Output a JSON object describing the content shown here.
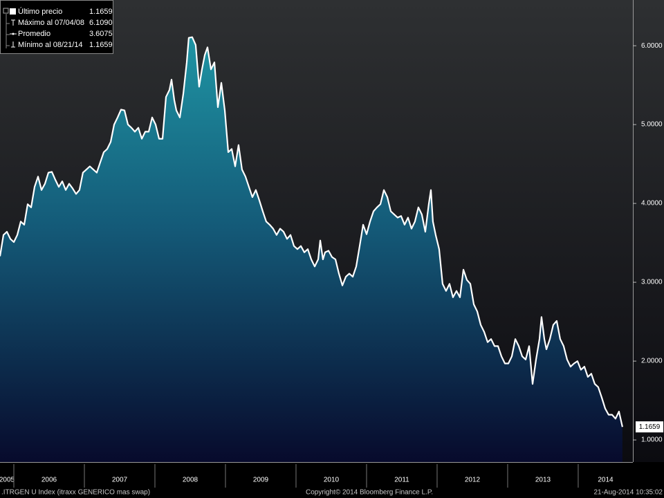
{
  "chart_data": {
    "type": "area-line",
    "color": "#ffffff",
    "x": [
      2005.804,
      2005.853,
      2005.902,
      2005.951,
      2006.0,
      2006.049,
      2006.098,
      2006.147,
      2006.196,
      2006.245,
      2006.294,
      2006.343,
      2006.392,
      2006.441,
      2006.49,
      2006.539,
      2006.588,
      2006.637,
      2006.686,
      2006.735,
      2006.784,
      2006.833,
      2006.882,
      2006.931,
      2006.98,
      2007.029,
      2007.078,
      2007.127,
      2007.176,
      2007.225,
      2007.275,
      2007.324,
      2007.373,
      2007.422,
      2007.471,
      2007.52,
      2007.569,
      2007.618,
      2007.667,
      2007.716,
      2007.765,
      2007.814,
      2007.863,
      2007.912,
      2007.961,
      2008.01,
      2008.059,
      2008.108,
      2008.157,
      2008.206,
      2008.235,
      2008.275,
      2008.304,
      2008.353,
      2008.402,
      2008.451,
      2008.48,
      2008.529,
      2008.578,
      2008.627,
      2008.667,
      2008.706,
      2008.745,
      2008.794,
      2008.843,
      2008.892,
      2008.941,
      2008.99,
      2009.039,
      2009.088,
      2009.137,
      2009.186,
      2009.235,
      2009.284,
      2009.333,
      2009.382,
      2009.431,
      2009.48,
      2009.529,
      2009.578,
      2009.627,
      2009.676,
      2009.725,
      2009.775,
      2009.824,
      2009.873,
      2009.922,
      2009.971,
      2010.02,
      2010.069,
      2010.118,
      2010.167,
      2010.216,
      2010.265,
      2010.314,
      2010.343,
      2010.382,
      2010.412,
      2010.461,
      2010.51,
      2010.559,
      2010.608,
      2010.657,
      2010.706,
      2010.755,
      2010.804,
      2010.853,
      2010.902,
      2010.951,
      2011.0,
      2011.049,
      2011.098,
      2011.147,
      2011.196,
      2011.245,
      2011.294,
      2011.343,
      2011.392,
      2011.441,
      2011.49,
      2011.539,
      2011.588,
      2011.637,
      2011.686,
      2011.735,
      2011.784,
      2011.833,
      2011.882,
      2011.912,
      2011.941,
      2011.98,
      2012.029,
      2012.078,
      2012.127,
      2012.176,
      2012.225,
      2012.275,
      2012.324,
      2012.373,
      2012.422,
      2012.471,
      2012.52,
      2012.569,
      2012.618,
      2012.667,
      2012.716,
      2012.765,
      2012.814,
      2012.863,
      2012.912,
      2012.961,
      2013.01,
      2013.059,
      2013.108,
      2013.157,
      2013.206,
      2013.255,
      2013.304,
      2013.353,
      2013.402,
      2013.451,
      2013.48,
      2013.52,
      2013.549,
      2013.598,
      2013.647,
      2013.696,
      2013.745,
      2013.794,
      2013.843,
      2013.892,
      2013.941,
      2013.99,
      2014.039,
      2014.088,
      2014.137,
      2014.186,
      2014.235,
      2014.284,
      2014.333,
      2014.382,
      2014.431,
      2014.48,
      2014.529,
      2014.578,
      2014.627
    ],
    "values": [
      3.33,
      3.6,
      3.64,
      3.55,
      3.51,
      3.6,
      3.77,
      3.73,
      3.99,
      3.95,
      4.21,
      4.34,
      4.17,
      4.25,
      4.39,
      4.4,
      4.3,
      4.21,
      4.28,
      4.17,
      4.25,
      4.19,
      4.12,
      4.17,
      4.39,
      4.43,
      4.47,
      4.43,
      4.39,
      4.52,
      4.65,
      4.69,
      4.78,
      5.0,
      5.09,
      5.19,
      5.18,
      5.0,
      4.96,
      4.91,
      4.96,
      4.82,
      4.91,
      4.91,
      5.09,
      5.0,
      4.82,
      4.82,
      5.35,
      5.44,
      5.57,
      5.31,
      5.18,
      5.09,
      5.39,
      5.79,
      6.1,
      6.109,
      6.01,
      5.48,
      5.7,
      5.88,
      5.98,
      5.7,
      5.79,
      5.22,
      5.53,
      5.18,
      4.65,
      4.69,
      4.47,
      4.74,
      4.43,
      4.34,
      4.21,
      4.08,
      4.17,
      4.04,
      3.9,
      3.77,
      3.73,
      3.68,
      3.6,
      3.68,
      3.64,
      3.55,
      3.6,
      3.46,
      3.42,
      3.46,
      3.38,
      3.42,
      3.29,
      3.2,
      3.29,
      3.53,
      3.29,
      3.38,
      3.4,
      3.32,
      3.29,
      3.11,
      2.96,
      3.07,
      3.11,
      3.07,
      3.2,
      3.46,
      3.73,
      3.61,
      3.77,
      3.9,
      3.95,
      3.99,
      4.17,
      4.08,
      3.9,
      3.86,
      3.82,
      3.84,
      3.73,
      3.82,
      3.68,
      3.77,
      3.95,
      3.86,
      3.64,
      3.99,
      4.17,
      3.77,
      3.6,
      3.42,
      2.98,
      2.89,
      2.98,
      2.81,
      2.89,
      2.81,
      3.16,
      3.03,
      2.98,
      2.72,
      2.63,
      2.46,
      2.37,
      2.24,
      2.28,
      2.19,
      2.19,
      2.06,
      1.97,
      1.97,
      2.06,
      2.28,
      2.19,
      2.06,
      2.02,
      2.19,
      1.71,
      2.02,
      2.28,
      2.56,
      2.28,
      2.15,
      2.28,
      2.46,
      2.51,
      2.28,
      2.19,
      2.02,
      1.93,
      1.97,
      2.0,
      1.89,
      1.93,
      1.8,
      1.84,
      1.71,
      1.67,
      1.54,
      1.4,
      1.32,
      1.32,
      1.27,
      1.36,
      1.1659
    ],
    "xlim": [
      2005.804,
      2014.775
    ],
    "ylim": [
      0.72,
      6.58
    ],
    "xticks": [
      {
        "value": 2005,
        "label": "2005"
      },
      {
        "value": 2006,
        "label": "2006"
      },
      {
        "value": 2007,
        "label": "2007"
      },
      {
        "value": 2008,
        "label": "2008"
      },
      {
        "value": 2009,
        "label": "2009"
      },
      {
        "value": 2010,
        "label": "2010"
      },
      {
        "value": 2011,
        "label": "2011"
      },
      {
        "value": 2012,
        "label": "2012"
      },
      {
        "value": 2013,
        "label": "2013"
      },
      {
        "value": 2014,
        "label": "2014"
      }
    ],
    "yticks": [
      {
        "value": 1,
        "label": "1.0000"
      },
      {
        "value": 2,
        "label": "2.0000"
      },
      {
        "value": 3,
        "label": "3.0000"
      },
      {
        "value": 4,
        "label": "4.0000"
      },
      {
        "value": 5,
        "label": "5.0000"
      },
      {
        "value": 6,
        "label": "6.0000"
      }
    ],
    "stats": [
      {
        "name": "Último precio",
        "value": 1.1659
      },
      {
        "name": "Máximo al 07/04/08",
        "value": {
          "value": 6.109,
          "label": "6.1090"
        }
      },
      {
        "name": "Promedio",
        "value": 3.6075
      },
      {
        "name": "Mínimo al 08/21/14",
        "value": 1.1659
      }
    ],
    "footer": {
      "index": ".ITRGEN U Index (itraxx GENERICO mas swap)",
      "copyright": "Copyright© 2014 Bloomberg Finance L.P.",
      "timestamp": "21-Aug-2014 10:35:02"
    }
  }
}
